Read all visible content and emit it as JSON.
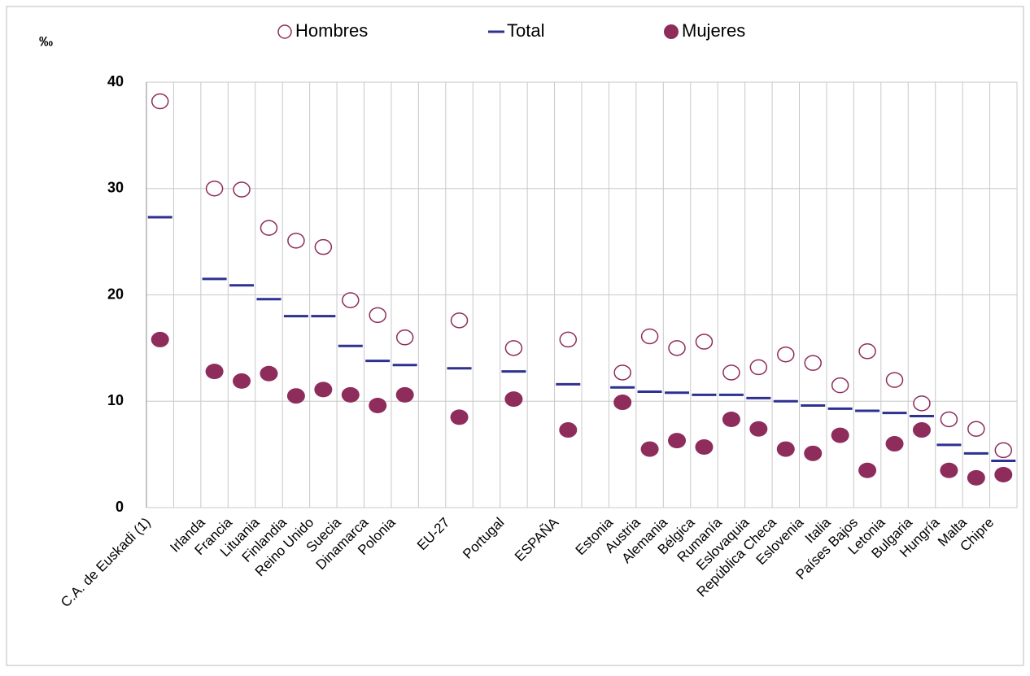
{
  "chart_data": {
    "type": "dot",
    "y_label": "‰",
    "categories": [
      "C.A. de Euskadi (1)",
      null,
      "Irlanda",
      "Francia",
      "Lituania",
      "Finlandia",
      "Reino Unido",
      "Suecia",
      "Dinamarca",
      "Polonia",
      null,
      "EU-27",
      null,
      "Portugal",
      null,
      "ESPAÑA",
      null,
      "Estonia",
      "Austria",
      "Alemania",
      "Bélgica",
      "Rumanía",
      "Eslovaquia",
      "República Checa",
      "Eslovenia",
      "Italia",
      "Países Bajos",
      "Letonia",
      "Bulgaria",
      "Hungría",
      "Malta",
      "Chipre"
    ],
    "series": [
      {
        "name": "Hombres",
        "color": "#8e2c5c",
        "marker": "hollow-circle",
        "values": [
          38.2,
          null,
          30.0,
          29.9,
          26.3,
          25.1,
          24.5,
          19.5,
          18.1,
          16.0,
          null,
          17.6,
          null,
          15.0,
          null,
          15.8,
          null,
          12.7,
          16.1,
          15.0,
          15.6,
          12.7,
          13.2,
          14.4,
          13.6,
          11.5,
          14.7,
          12.0,
          9.8,
          8.3,
          7.4,
          5.4
        ]
      },
      {
        "name": "Total",
        "color": "#2e3192",
        "marker": "dash",
        "values": [
          27.3,
          null,
          21.5,
          20.9,
          19.6,
          18.0,
          18.0,
          15.2,
          13.8,
          13.4,
          null,
          13.1,
          null,
          12.8,
          null,
          11.6,
          null,
          11.3,
          10.9,
          10.8,
          10.6,
          10.6,
          10.3,
          10.0,
          9.6,
          9.3,
          9.1,
          8.9,
          8.6,
          5.9,
          5.1,
          4.4
        ]
      },
      {
        "name": "Mujeres",
        "color": "#8e2c5c",
        "marker": "filled-circle",
        "values": [
          15.8,
          null,
          12.8,
          11.9,
          12.6,
          10.5,
          11.1,
          10.6,
          9.6,
          10.6,
          null,
          8.5,
          null,
          10.2,
          null,
          7.3,
          null,
          9.9,
          5.5,
          6.3,
          5.7,
          8.3,
          7.4,
          5.5,
          5.1,
          6.8,
          3.5,
          6.0,
          7.3,
          3.5,
          2.8,
          3.1
        ]
      }
    ],
    "ylim": [
      0,
      40
    ],
    "yticks": [
      0,
      10,
      20,
      30,
      40
    ],
    "grid": true
  }
}
